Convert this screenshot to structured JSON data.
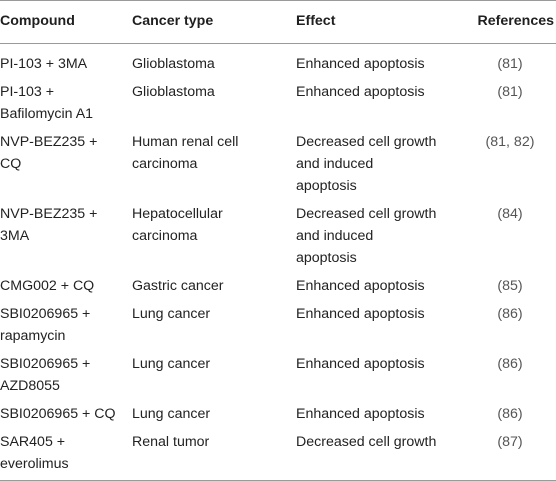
{
  "table": {
    "headers": [
      "Compound",
      "Cancer type",
      "Effect",
      "References"
    ],
    "rows": [
      {
        "compound": [
          "PI-103 + 3MA"
        ],
        "cancer": [
          "Glioblastoma"
        ],
        "effect": [
          "Enhanced apoptosis"
        ],
        "refs": "(81)"
      },
      {
        "compound": [
          "PI-103 +",
          "Bafilomycin A1"
        ],
        "cancer": [
          "Glioblastoma"
        ],
        "effect": [
          "Enhanced apoptosis"
        ],
        "refs": "(81)"
      },
      {
        "compound": [
          "NVP-BEZ235 +",
          "CQ"
        ],
        "cancer": [
          "Human renal cell",
          "carcinoma"
        ],
        "effect": [
          "Decreased cell growth",
          "and induced",
          "apoptosis"
        ],
        "refs": "(81, 82)"
      },
      {
        "compound": [
          "NVP-BEZ235 +",
          "3MA"
        ],
        "cancer": [
          "Hepatocellular",
          "carcinoma"
        ],
        "effect": [
          "Decreased cell growth",
          "and induced",
          "apoptosis"
        ],
        "refs": "(84)"
      },
      {
        "compound": [
          "CMG002 + CQ"
        ],
        "cancer": [
          "Gastric cancer"
        ],
        "effect": [
          "Enhanced apoptosis"
        ],
        "refs": "(85)"
      },
      {
        "compound": [
          "SBI0206965 +",
          "rapamycin"
        ],
        "cancer": [
          "Lung cancer"
        ],
        "effect": [
          "Enhanced apoptosis"
        ],
        "refs": "(86)"
      },
      {
        "compound": [
          "SBI0206965 +",
          "AZD8055"
        ],
        "cancer": [
          "Lung cancer"
        ],
        "effect": [
          "Enhanced apoptosis"
        ],
        "refs": "(86)"
      },
      {
        "compound": [
          "SBI0206965 + CQ"
        ],
        "cancer": [
          "Lung cancer"
        ],
        "effect": [
          "Enhanced apoptosis"
        ],
        "refs": "(86)"
      },
      {
        "compound": [
          "SAR405 +",
          "everolimus"
        ],
        "cancer": [
          "Renal tumor"
        ],
        "effect": [
          "Decreased cell growth"
        ],
        "refs": "(87)"
      }
    ]
  }
}
